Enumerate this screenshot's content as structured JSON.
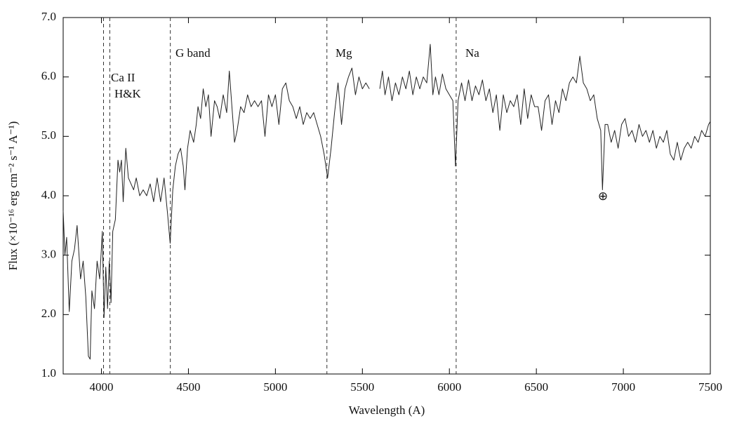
{
  "chart_data": {
    "type": "line",
    "xlabel": "Wavelength  (A)",
    "ylabel": "Flux (×10⁻¹⁶ erg cm⁻² s⁻¹ A⁻¹)",
    "xlim": [
      3780,
      7500
    ],
    "ylim": [
      1.0,
      7.0
    ],
    "xticks": [
      4000,
      4500,
      5000,
      5500,
      6000,
      6500,
      7000,
      7500
    ],
    "yticks": [
      {
        "value": 1.0,
        "label": "1.0"
      },
      {
        "value": 2.0,
        "label": "2.0"
      },
      {
        "value": 3.0,
        "label": "3.0"
      },
      {
        "value": 4.0,
        "label": "4.0"
      },
      {
        "value": 5.0,
        "label": "5.0"
      },
      {
        "value": 6.0,
        "label": "6.0"
      },
      {
        "value": 7.0,
        "label": "7.0"
      }
    ],
    "color": "#222222",
    "vlines": [
      4012,
      4048,
      4396,
      5296,
      6039
    ],
    "annotations": [
      "Ca II",
      "H&K",
      "G band",
      "Mg",
      "Na",
      "⊕"
    ],
    "x": [
      3780,
      3790,
      3800,
      3815,
      3830,
      3845,
      3860,
      3880,
      3895,
      3910,
      3925,
      3935,
      3945,
      3960,
      3975,
      3990,
      4005,
      4015,
      4025,
      4035,
      4045,
      4055,
      4065,
      4080,
      4095,
      4105,
      4115,
      4125,
      4140,
      4155,
      4170,
      4185,
      4200,
      4220,
      4240,
      4260,
      4280,
      4300,
      4320,
      4340,
      4360,
      4380,
      4395,
      4410,
      4425,
      4440,
      4455,
      4470,
      4480,
      4495,
      4510,
      4530,
      4545,
      4555,
      4570,
      4585,
      4600,
      4615,
      4630,
      4650,
      4665,
      4680,
      4700,
      4720,
      4735,
      4750,
      4765,
      4780,
      4800,
      4820,
      4840,
      4860,
      4880,
      4900,
      4920,
      4940,
      4960,
      4980,
      5000,
      5020,
      5040,
      5060,
      5080,
      5100,
      5120,
      5140,
      5160,
      5180,
      5200,
      5220,
      5240,
      5260,
      5280,
      5300,
      5320,
      5340,
      5360,
      5380,
      5400,
      5420,
      5440,
      5460,
      5480,
      5500,
      5520,
      5540,
      5575,
      5600,
      5615,
      5630,
      5650,
      5670,
      5690,
      5710,
      5730,
      5750,
      5770,
      5790,
      5810,
      5830,
      5850,
      5870,
      5890,
      5905,
      5920,
      5940,
      5960,
      5980,
      6000,
      6020,
      6035,
      6050,
      6070,
      6090,
      6110,
      6130,
      6150,
      6170,
      6190,
      6210,
      6230,
      6250,
      6270,
      6290,
      6310,
      6330,
      6350,
      6370,
      6390,
      6410,
      6430,
      6450,
      6470,
      6490,
      6510,
      6530,
      6550,
      6570,
      6590,
      6610,
      6630,
      6650,
      6670,
      6690,
      6710,
      6730,
      6750,
      6770,
      6790,
      6810,
      6830,
      6850,
      6870,
      6880,
      6895,
      6910,
      6930,
      6950,
      6970,
      6990,
      7010,
      7030,
      7050,
      7070,
      7090,
      7110,
      7130,
      7150,
      7170,
      7190,
      7210,
      7230,
      7250,
      7270,
      7290,
      7310,
      7330,
      7350,
      7370,
      7390,
      7410,
      7430,
      7450,
      7470,
      7490,
      7500
    ],
    "values": [
      3.75,
      3.0,
      3.3,
      2.05,
      2.9,
      3.1,
      3.5,
      2.6,
      2.9,
      2.3,
      1.3,
      1.25,
      2.4,
      2.1,
      2.9,
      2.6,
      3.4,
      1.95,
      2.8,
      2.1,
      2.9,
      2.2,
      3.4,
      3.6,
      4.6,
      4.4,
      4.6,
      3.9,
      4.8,
      4.3,
      4.2,
      4.1,
      4.3,
      4.0,
      4.1,
      4.0,
      4.2,
      3.9,
      4.3,
      3.9,
      4.3,
      3.7,
      3.2,
      4.1,
      4.5,
      4.7,
      4.8,
      4.5,
      4.1,
      4.8,
      5.1,
      4.9,
      5.2,
      5.5,
      5.3,
      5.8,
      5.5,
      5.7,
      5.0,
      5.6,
      5.5,
      5.3,
      5.7,
      5.4,
      6.1,
      5.5,
      4.9,
      5.1,
      5.5,
      5.4,
      5.7,
      5.5,
      5.6,
      5.5,
      5.6,
      5.0,
      5.7,
      5.5,
      5.7,
      5.2,
      5.8,
      5.9,
      5.6,
      5.5,
      5.3,
      5.5,
      5.2,
      5.4,
      5.3,
      5.4,
      5.2,
      5.0,
      4.7,
      4.3,
      4.8,
      5.4,
      5.9,
      5.2,
      5.8,
      6.0,
      6.15,
      5.7,
      6.0,
      5.8,
      5.9,
      5.8,
      null,
      5.8,
      6.1,
      5.7,
      6.0,
      5.6,
      5.9,
      5.7,
      6.0,
      5.8,
      6.1,
      5.7,
      6.0,
      5.8,
      6.0,
      5.9,
      6.55,
      5.7,
      6.0,
      5.7,
      6.05,
      5.8,
      5.7,
      5.6,
      4.5,
      5.6,
      5.9,
      5.6,
      5.95,
      5.6,
      5.85,
      5.7,
      5.95,
      5.6,
      5.8,
      5.4,
      5.7,
      5.1,
      5.7,
      5.4,
      5.6,
      5.5,
      5.7,
      5.2,
      5.8,
      5.3,
      5.7,
      5.5,
      5.5,
      5.1,
      5.6,
      5.7,
      5.2,
      5.6,
      5.4,
      5.8,
      5.6,
      5.9,
      6.0,
      5.9,
      6.35,
      5.9,
      5.8,
      5.6,
      5.7,
      5.3,
      5.1,
      4.1,
      5.2,
      5.2,
      4.9,
      5.1,
      4.8,
      5.2,
      5.3,
      5.0,
      5.1,
      4.9,
      5.2,
      5.0,
      5.1,
      4.9,
      5.1,
      4.8,
      5.0,
      4.9,
      5.1,
      4.7,
      4.6,
      4.9,
      4.6,
      4.8,
      4.9,
      4.8,
      5.0,
      4.9,
      5.1,
      5.0,
      5.2,
      5.25
    ]
  }
}
